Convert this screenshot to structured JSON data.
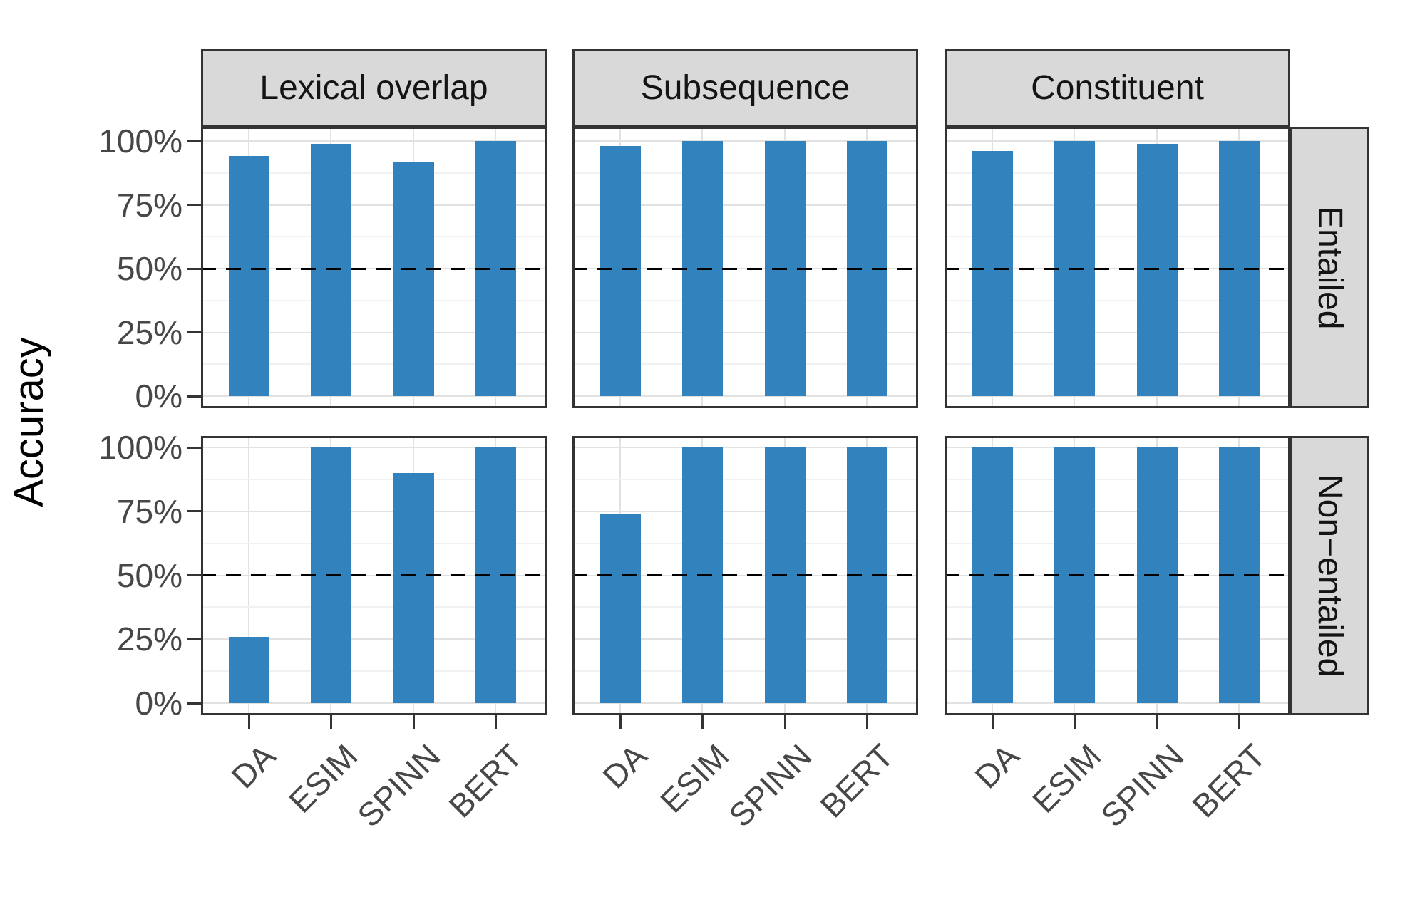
{
  "figure": {
    "y_axis_title": "Accuracy",
    "colors": {
      "bar": "#3182BD",
      "strip_bg": "#D9D9D9",
      "panel_border": "#333333",
      "grid_major": "#E2E2E2",
      "grid_minor": "#F1F1F1",
      "axis_text": "#474747",
      "strip_text": "#141414",
      "reference_line": "#000000"
    }
  },
  "chart_data": {
    "type": "bar",
    "title": "",
    "xlabel": "",
    "ylabel": "Accuracy",
    "categories": [
      "DA",
      "ESIM",
      "SPINN",
      "BERT"
    ],
    "facet_columns": [
      "Lexical overlap",
      "Subsequence",
      "Constituent"
    ],
    "facet_rows": [
      "Entailed",
      "Non−entailed"
    ],
    "ylim": [
      0,
      100
    ],
    "y_ticks": [
      100,
      75,
      50,
      25,
      0
    ],
    "y_tick_labels": [
      "100%",
      "75%",
      "50%",
      "25%",
      "0%"
    ],
    "y_minor_ticks": [
      12.5,
      37.5,
      62.5,
      87.5
    ],
    "reference_line_y": 50,
    "grid": true,
    "legend": "none",
    "series": [
      {
        "row": "Entailed",
        "column": "Lexical overlap",
        "values": [
          94,
          99,
          92,
          100
        ]
      },
      {
        "row": "Entailed",
        "column": "Subsequence",
        "values": [
          98,
          100,
          100,
          100
        ]
      },
      {
        "row": "Entailed",
        "column": "Constituent",
        "values": [
          96,
          100,
          99,
          100
        ]
      },
      {
        "row": "Non−entailed",
        "column": "Lexical overlap",
        "values": [
          26,
          100,
          90,
          100
        ]
      },
      {
        "row": "Non−entailed",
        "column": "Subsequence",
        "values": [
          74,
          100,
          100,
          100
        ]
      },
      {
        "row": "Non−entailed",
        "column": "Constituent",
        "values": [
          100,
          100,
          100,
          100
        ]
      }
    ]
  }
}
